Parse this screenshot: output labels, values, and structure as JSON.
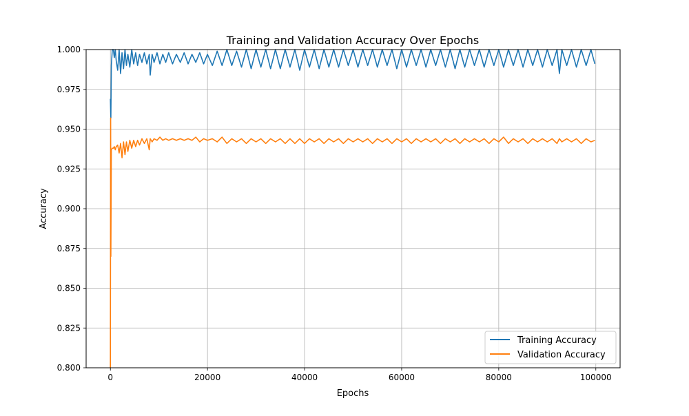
{
  "chart_data": {
    "type": "line",
    "title": "Training and Validation Accuracy Over Epochs",
    "xlabel": "Epochs",
    "ylabel": "Accuracy",
    "xlim": [
      -5000,
      105000
    ],
    "ylim": [
      0.8,
      1.0
    ],
    "x_ticks": [
      0,
      20000,
      40000,
      60000,
      80000,
      100000
    ],
    "x_tick_labels": [
      "0",
      "20000",
      "40000",
      "60000",
      "80000",
      "100000"
    ],
    "y_ticks": [
      0.8,
      0.825,
      0.85,
      0.875,
      0.9,
      0.925,
      0.95,
      0.975,
      1.0
    ],
    "y_tick_labels": [
      "0.800",
      "0.825",
      "0.850",
      "0.875",
      "0.900",
      "0.925",
      "0.950",
      "0.975",
      "1.000"
    ],
    "grid": true,
    "legend_position": "lower-right",
    "series": [
      {
        "name": "Training Accuracy",
        "color": "#1f77b4",
        "x": [
          0,
          100,
          200,
          400,
          600,
          800,
          1000,
          1200,
          1500,
          1800,
          2100,
          2400,
          2700,
          3000,
          3300,
          3600,
          4000,
          4400,
          4800,
          5200,
          5600,
          6000,
          6500,
          7000,
          7500,
          8000,
          8200,
          8600,
          9000,
          9600,
          10200,
          10800,
          11400,
          12000,
          12800,
          13600,
          14400,
          15200,
          16000,
          16800,
          17600,
          18400,
          19200,
          20000,
          21000,
          22000,
          23000,
          24000,
          25000,
          26000,
          27000,
          28000,
          29000,
          30000,
          31000,
          32000,
          33000,
          34000,
          35000,
          36000,
          37000,
          38000,
          39000,
          40000,
          41000,
          42000,
          43000,
          44000,
          45000,
          46000,
          47000,
          48000,
          49000,
          50000,
          51000,
          52000,
          53000,
          54000,
          55000,
          56000,
          57000,
          58000,
          59000,
          60000,
          61000,
          62000,
          63000,
          64000,
          65000,
          66000,
          67000,
          68000,
          69000,
          70000,
          71000,
          72000,
          73000,
          74000,
          75000,
          76000,
          77000,
          78000,
          79000,
          80000,
          81000,
          82000,
          83000,
          84000,
          85000,
          86000,
          87000,
          88000,
          89000,
          90000,
          91000,
          92000,
          92500,
          93000,
          94000,
          95000,
          96000,
          97000,
          98000,
          99000,
          99800
        ],
        "y": [
          0.969,
          0.957,
          0.99,
          1.0,
          1.0,
          0.995,
          1.0,
          0.993,
          0.987,
          1.0,
          0.985,
          0.998,
          0.988,
          1.0,
          0.99,
          0.997,
          0.989,
          1.0,
          0.991,
          0.998,
          0.99,
          0.997,
          0.992,
          0.998,
          0.991,
          0.997,
          0.984,
          0.997,
          0.992,
          0.998,
          0.991,
          0.997,
          0.992,
          0.998,
          0.991,
          0.997,
          0.992,
          0.998,
          0.991,
          0.997,
          0.992,
          0.998,
          0.991,
          0.997,
          0.99,
          0.999,
          0.99,
          1.0,
          0.99,
          0.999,
          0.989,
          1.0,
          0.988,
          1.0,
          0.989,
          1.0,
          0.988,
          1.0,
          0.988,
          1.0,
          0.989,
          1.0,
          0.987,
          1.0,
          0.989,
          1.0,
          0.988,
          1.0,
          0.989,
          1.0,
          0.989,
          1.0,
          0.99,
          1.0,
          0.989,
          1.0,
          0.99,
          1.0,
          0.989,
          1.0,
          0.99,
          1.0,
          0.988,
          1.0,
          0.989,
          1.0,
          0.99,
          1.0,
          0.989,
          1.0,
          0.99,
          1.0,
          0.989,
          1.0,
          0.988,
          1.0,
          0.989,
          1.0,
          0.99,
          1.0,
          0.989,
          1.0,
          0.99,
          1.0,
          0.989,
          1.0,
          0.99,
          1.0,
          0.989,
          1.0,
          0.99,
          1.0,
          0.989,
          1.0,
          0.99,
          1.0,
          0.985,
          1.0,
          0.99,
          1.0,
          0.989,
          1.0,
          0.99,
          1.0,
          0.991
        ]
      },
      {
        "name": "Validation Accuracy",
        "color": "#ff7f0e",
        "x": [
          0,
          50,
          100,
          200,
          400,
          600,
          800,
          1000,
          1200,
          1500,
          1800,
          2100,
          2400,
          2700,
          3000,
          3300,
          3600,
          4000,
          4400,
          4800,
          5200,
          5600,
          6000,
          6500,
          7000,
          7500,
          8000,
          8200,
          8600,
          9000,
          9600,
          10200,
          10800,
          11400,
          12000,
          12800,
          13600,
          14400,
          15200,
          16000,
          16800,
          17600,
          18400,
          19200,
          20000,
          21000,
          22000,
          23000,
          24000,
          25000,
          26000,
          27000,
          28000,
          29000,
          30000,
          31000,
          32000,
          33000,
          34000,
          35000,
          36000,
          37000,
          38000,
          39000,
          40000,
          41000,
          42000,
          43000,
          44000,
          45000,
          46000,
          47000,
          48000,
          49000,
          50000,
          51000,
          52000,
          53000,
          54000,
          55000,
          56000,
          57000,
          58000,
          59000,
          60000,
          61000,
          62000,
          63000,
          64000,
          65000,
          66000,
          67000,
          68000,
          69000,
          70000,
          71000,
          72000,
          73000,
          74000,
          75000,
          76000,
          77000,
          78000,
          79000,
          80000,
          81000,
          82000,
          83000,
          84000,
          85000,
          86000,
          87000,
          88000,
          89000,
          90000,
          91000,
          92000,
          92500,
          93000,
          94000,
          95000,
          96000,
          97000,
          98000,
          99000,
          99800
        ],
        "y": [
          0.8,
          0.957,
          0.87,
          0.937,
          0.938,
          0.938,
          0.939,
          0.937,
          0.939,
          0.94,
          0.935,
          0.941,
          0.932,
          0.942,
          0.934,
          0.942,
          0.936,
          0.943,
          0.938,
          0.943,
          0.939,
          0.943,
          0.94,
          0.944,
          0.941,
          0.944,
          0.937,
          0.944,
          0.942,
          0.944,
          0.943,
          0.945,
          0.943,
          0.944,
          0.943,
          0.944,
          0.943,
          0.944,
          0.943,
          0.944,
          0.943,
          0.945,
          0.942,
          0.944,
          0.943,
          0.944,
          0.942,
          0.945,
          0.941,
          0.944,
          0.942,
          0.944,
          0.941,
          0.944,
          0.942,
          0.944,
          0.941,
          0.944,
          0.942,
          0.944,
          0.941,
          0.944,
          0.941,
          0.944,
          0.941,
          0.944,
          0.942,
          0.944,
          0.941,
          0.944,
          0.942,
          0.944,
          0.941,
          0.944,
          0.942,
          0.944,
          0.942,
          0.944,
          0.941,
          0.944,
          0.942,
          0.944,
          0.941,
          0.944,
          0.942,
          0.944,
          0.941,
          0.944,
          0.942,
          0.944,
          0.942,
          0.944,
          0.941,
          0.944,
          0.942,
          0.944,
          0.941,
          0.944,
          0.942,
          0.944,
          0.942,
          0.944,
          0.941,
          0.944,
          0.942,
          0.945,
          0.941,
          0.944,
          0.942,
          0.944,
          0.941,
          0.944,
          0.942,
          0.944,
          0.942,
          0.944,
          0.941,
          0.944,
          0.942,
          0.944,
          0.942,
          0.944,
          0.941,
          0.944,
          0.942,
          0.943
        ]
      }
    ]
  }
}
